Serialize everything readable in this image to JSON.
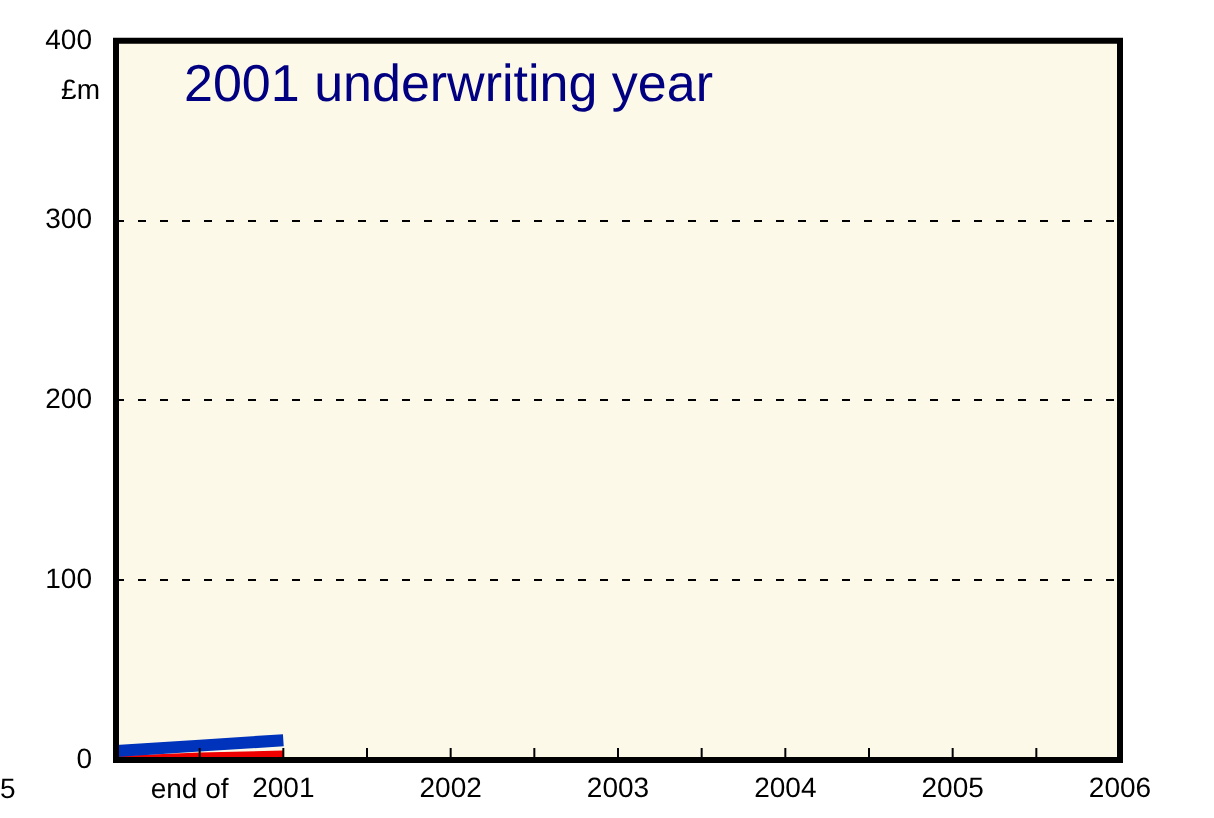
{
  "chart_data": {
    "type": "line",
    "title": "2001 underwriting year",
    "ylabel": "£m",
    "x": [
      2000,
      2000.5,
      2001
    ],
    "series": [
      {
        "color": "#0033bb",
        "values": [
          5,
          8,
          11
        ]
      },
      {
        "color": "#ee0000",
        "values": [
          0,
          2,
          3
        ]
      }
    ],
    "xlim": [
      2000,
      2006
    ],
    "xticks": [
      {
        "value": 2000.5,
        "label": null
      },
      2001,
      {
        "value": 2001.5,
        "label": null
      },
      2002,
      {
        "value": 2002.5,
        "label": null
      },
      2003,
      {
        "value": 2003.5,
        "label": null
      },
      2004,
      {
        "value": 2004.5,
        "label": null
      },
      2005,
      {
        "value": 2005.5,
        "label": null
      },
      2006
    ],
    "ylim": [
      0,
      400
    ],
    "yticks": [
      0,
      100,
      200,
      300,
      400
    ],
    "grid": "y",
    "legend": false,
    "marker": "none",
    "line_style": "solid",
    "annotations": [
      "5",
      "end of"
    ]
  }
}
